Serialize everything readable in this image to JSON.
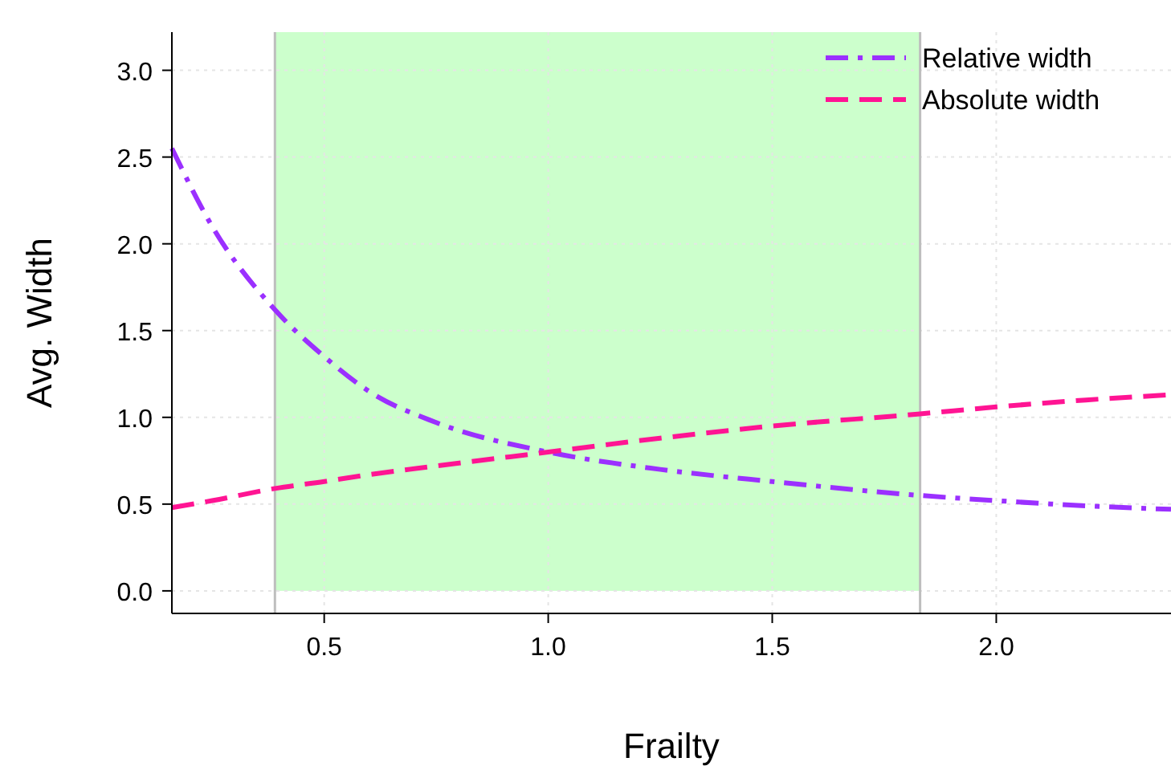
{
  "chart_data": {
    "type": "line",
    "xlabel": "Frailty",
    "ylabel": "Avg. Width",
    "xlim": [
      0.16,
      2.39
    ],
    "ylim": [
      -0.13,
      3.22
    ],
    "xticks": [
      0.5,
      {
        "value": 1,
        "label": "1.0"
      },
      1.5,
      {
        "value": 2,
        "label": "2.0"
      }
    ],
    "yticks": [
      {
        "value": 0,
        "label": "0.0"
      },
      0.5,
      {
        "value": 1,
        "label": "1.0"
      },
      1.5,
      {
        "value": 2,
        "label": "2.0"
      },
      2.5,
      {
        "value": 3,
        "label": "3.0"
      }
    ],
    "grid": true,
    "legend": "top right",
    "bands": [
      {
        "axis": "x",
        "from": 0.39,
        "to": 1.83,
        "color": "#ccffcc"
      }
    ],
    "ref_lines": [
      {
        "axis": "x",
        "value": 0.39,
        "color": "#bebebe"
      },
      {
        "axis": "x",
        "value": 1.83,
        "color": "#bebebe"
      }
    ],
    "x": [
      0.16,
      0.25,
      0.39,
      0.5,
      0.6,
      0.75,
      1.0,
      1.25,
      1.5,
      1.83,
      2.0,
      2.2,
      2.39
    ],
    "series": [
      {
        "name": "Relative width",
        "color": "#9b30ff",
        "line_style": "dashdot",
        "values": [
          2.55,
          2.1,
          1.62,
          1.35,
          1.15,
          0.97,
          0.8,
          0.7,
          0.63,
          0.55,
          0.52,
          0.49,
          0.47
        ]
      },
      {
        "name": "Absolute width",
        "color": "#ff1493",
        "line_style": "dashed",
        "values": [
          0.48,
          0.52,
          0.59,
          0.63,
          0.67,
          0.72,
          0.8,
          0.88,
          0.95,
          1.02,
          1.06,
          1.1,
          1.13
        ]
      }
    ]
  }
}
